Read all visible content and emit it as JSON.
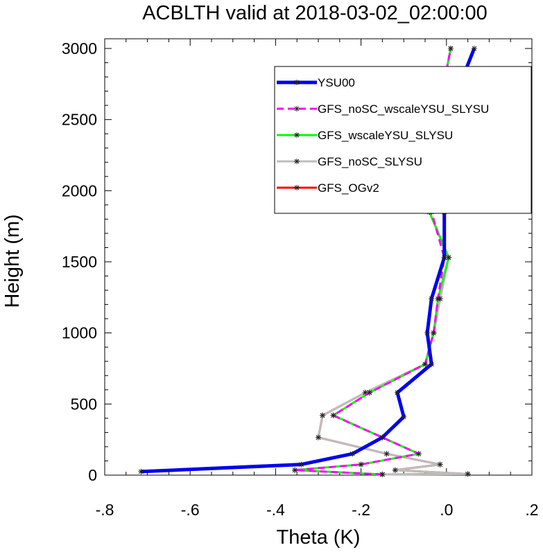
{
  "chart_data": {
    "type": "line",
    "title": "ACBLTH valid at 2018-03-02_02:00:00",
    "xlabel": "Theta (K)",
    "ylabel": "Height (m)",
    "xlim": [
      -0.8,
      0.2
    ],
    "ylim": [
      0,
      3000
    ],
    "x_ticks": [
      -0.8,
      -0.6,
      -0.4,
      -0.2,
      0.0,
      0.2
    ],
    "x_tick_labels": [
      "-.8",
      "-.6",
      "-.4",
      "-.2",
      ".0",
      ".2"
    ],
    "y_ticks": [
      0,
      500,
      1000,
      1500,
      2000,
      2500,
      3000
    ],
    "y_tick_labels": [
      "0",
      "500",
      "1000",
      "1500",
      "2000",
      "2500",
      "3000"
    ],
    "grid": false,
    "legend_position": "top-right",
    "series": [
      {
        "name": "GFS_OGv2",
        "color": "#ff0000",
        "dash": "solid",
        "width": 3,
        "points": [
          [
            -0.15,
            5
          ],
          [
            0.05,
            8
          ],
          [
            -0.12,
            35
          ],
          [
            -0.015,
            75
          ],
          [
            -0.14,
            150
          ],
          [
            -0.3,
            265
          ],
          [
            -0.29,
            420
          ],
          [
            -0.19,
            580
          ],
          [
            -0.05,
            780
          ],
          [
            -0.03,
            1000
          ],
          [
            -0.015,
            1240
          ],
          [
            0.005,
            1530
          ],
          [
            -0.04,
            1850
          ],
          [
            -0.04,
            2210
          ],
          [
            -0.015,
            2620
          ],
          [
            0.01,
            3000
          ]
        ]
      },
      {
        "name": "GFS_noSC_SLYSU",
        "color": "#bdbdbd",
        "dash": "solid",
        "width": 3,
        "points": [
          [
            -0.15,
            5
          ],
          [
            0.05,
            8
          ],
          [
            -0.12,
            35
          ],
          [
            -0.015,
            75
          ],
          [
            -0.14,
            150
          ],
          [
            -0.3,
            265
          ],
          [
            -0.29,
            420
          ],
          [
            -0.19,
            580
          ],
          [
            -0.05,
            780
          ],
          [
            -0.03,
            1000
          ],
          [
            -0.015,
            1240
          ],
          [
            0.005,
            1530
          ],
          [
            -0.04,
            1850
          ],
          [
            -0.04,
            2210
          ],
          [
            -0.015,
            2620
          ],
          [
            0.01,
            3000
          ]
        ]
      },
      {
        "name": "GFS_wscaleYSU_SLYSU",
        "color": "#00ff00",
        "dash": "solid",
        "width": 3,
        "points": [
          [
            -0.15,
            5
          ],
          [
            -0.355,
            35
          ],
          [
            -0.2,
            75
          ],
          [
            -0.065,
            150
          ],
          [
            -0.15,
            265
          ],
          [
            -0.265,
            420
          ],
          [
            -0.18,
            580
          ],
          [
            -0.05,
            780
          ],
          [
            -0.03,
            1000
          ],
          [
            -0.02,
            1240
          ],
          [
            0.005,
            1530
          ],
          [
            -0.04,
            1850
          ],
          [
            -0.04,
            2210
          ],
          [
            -0.015,
            2620
          ],
          [
            0.01,
            3000
          ]
        ]
      },
      {
        "name": "GFS_noSC_wscaleYSU_SLYSU",
        "color": "#ff00ff",
        "dash": "dashed",
        "width": 3,
        "points": [
          [
            -0.15,
            5
          ],
          [
            -0.355,
            35
          ],
          [
            -0.2,
            75
          ],
          [
            -0.065,
            150
          ],
          [
            -0.15,
            265
          ],
          [
            -0.265,
            420
          ],
          [
            -0.18,
            580
          ],
          [
            -0.05,
            780
          ],
          [
            -0.03,
            1000
          ],
          [
            -0.02,
            1240
          ],
          [
            -0.005,
            1530
          ],
          [
            -0.035,
            1850
          ],
          [
            -0.035,
            2210
          ],
          [
            -0.015,
            2620
          ],
          [
            0.01,
            3000
          ]
        ]
      },
      {
        "name": "YSU00",
        "color": "#0000ee",
        "dash": "solid",
        "width": 5,
        "points": [
          [
            -0.715,
            25
          ],
          [
            -0.34,
            75
          ],
          [
            -0.22,
            150
          ],
          [
            -0.15,
            265
          ],
          [
            -0.1,
            410
          ],
          [
            -0.115,
            580
          ],
          [
            -0.035,
            780
          ],
          [
            -0.045,
            1000
          ],
          [
            -0.035,
            1240
          ],
          [
            -0.005,
            1530
          ],
          [
            -0.005,
            1850
          ],
          [
            0.0,
            2210
          ],
          [
            0.015,
            2620
          ],
          [
            0.065,
            3000
          ]
        ]
      }
    ]
  }
}
